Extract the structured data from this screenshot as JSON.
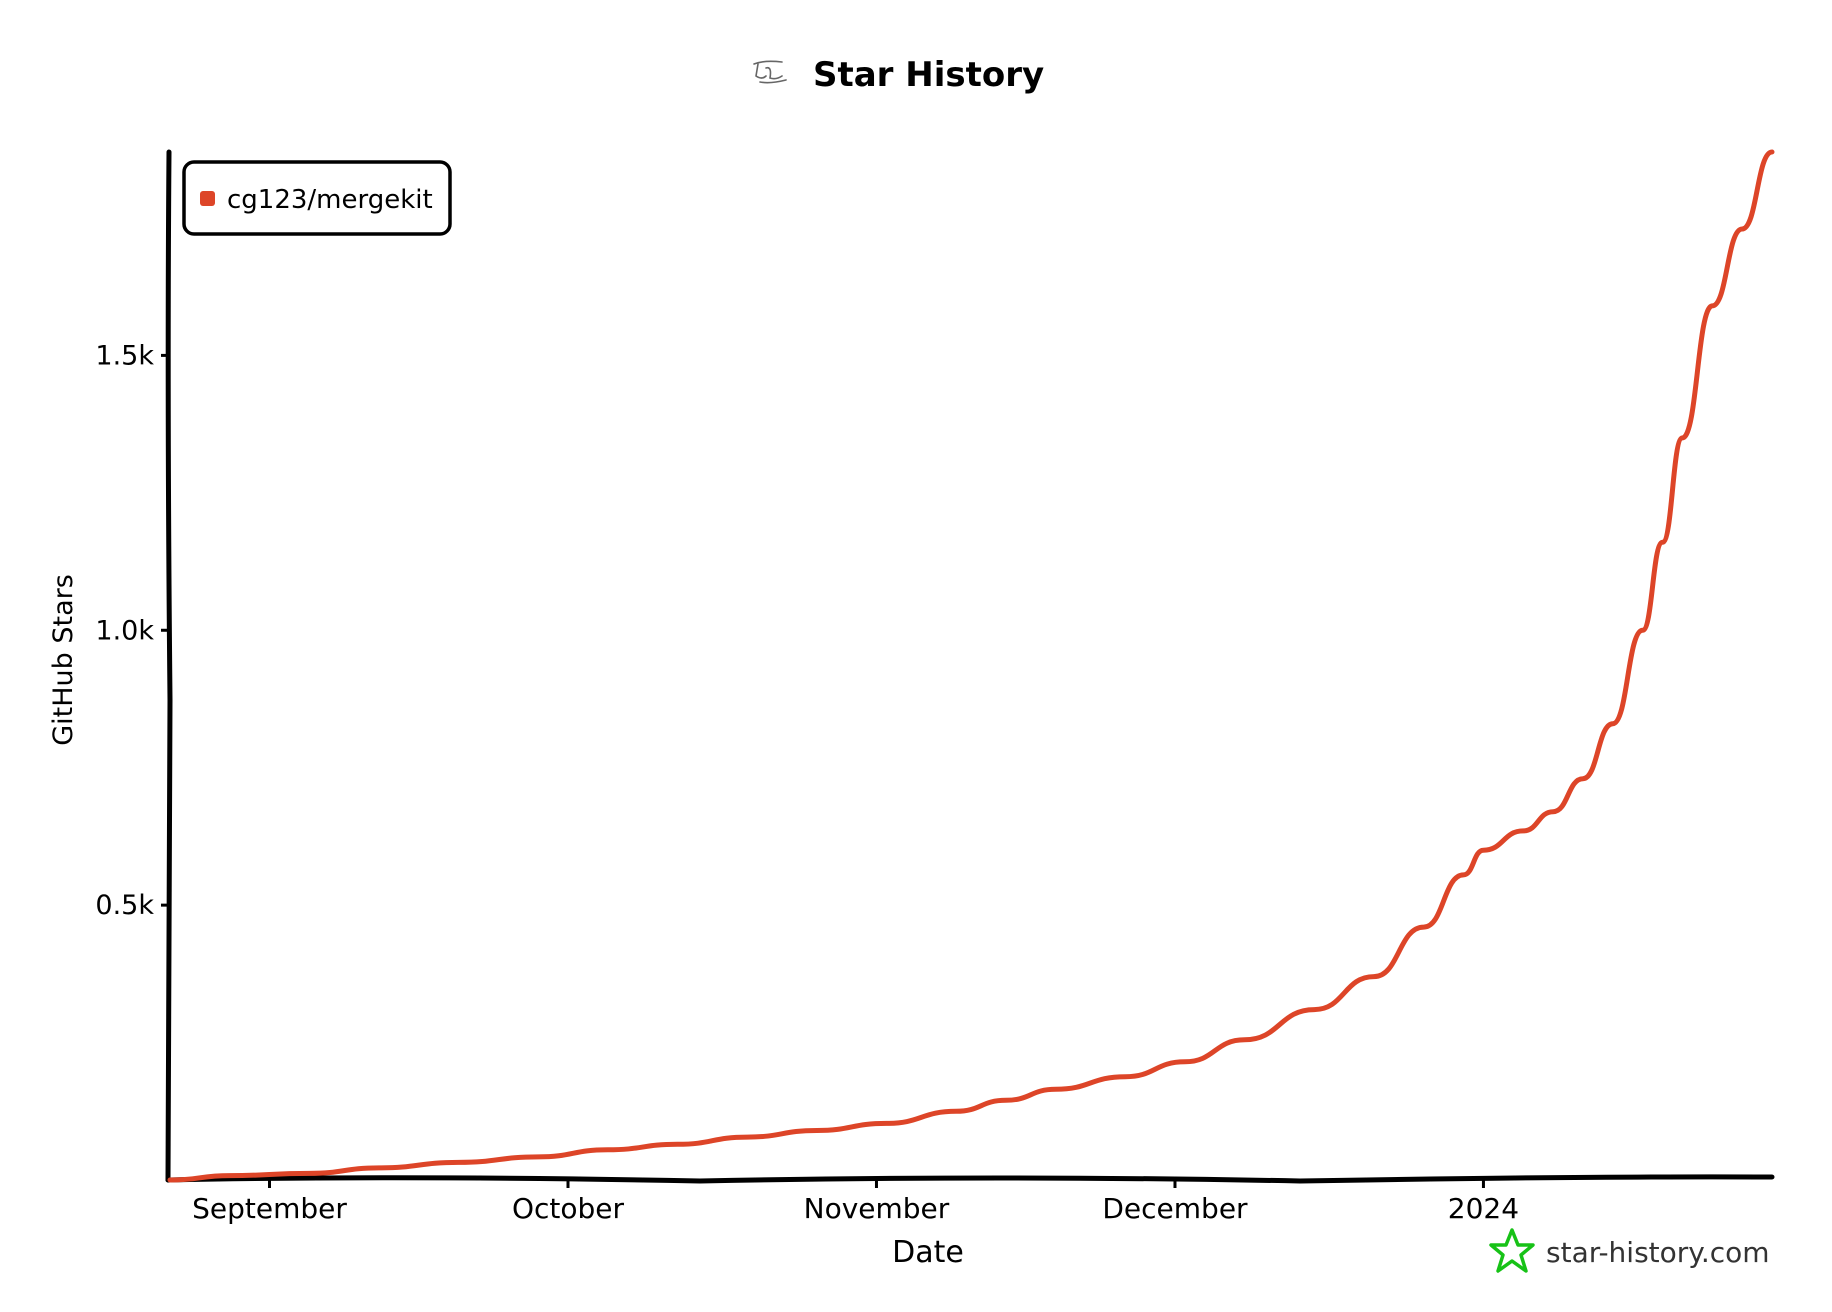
{
  "colors": {
    "series": "#dd4528",
    "axis": "#000000",
    "text": "#000000",
    "brand": "#17c217",
    "background": "#ffffff"
  },
  "icons": {
    "title": "github-icon",
    "brand": "star-icon"
  },
  "brand": {
    "text": "star-history.com"
  },
  "chart_data": {
    "type": "line",
    "title": "Star History",
    "xlabel": "Date",
    "ylabel": "GitHub Stars",
    "x_tick_labels": [
      "September",
      "October",
      "November",
      "December",
      "2024"
    ],
    "x_tick_dates": [
      "2023-09-01",
      "2023-10-01",
      "2023-11-01",
      "2023-12-01",
      "2024-01-01"
    ],
    "y_tick_labels": [
      "0.5k",
      "1.0k",
      "1.5k"
    ],
    "y_tick_values": [
      500,
      1000,
      1500
    ],
    "xlim": [
      "2023-08-22",
      "2024-01-30"
    ],
    "ylim": [
      0,
      1870
    ],
    "grid": false,
    "legend_position": "top-left",
    "series": [
      {
        "name": "cg123/mergekit",
        "color": "#dd4528",
        "points": [
          {
            "x": "2023-08-22",
            "y": 0
          },
          {
            "x": "2023-08-28",
            "y": 8
          },
          {
            "x": "2023-09-05",
            "y": 12
          },
          {
            "x": "2023-09-12",
            "y": 22
          },
          {
            "x": "2023-09-20",
            "y": 32
          },
          {
            "x": "2023-09-28",
            "y": 42
          },
          {
            "x": "2023-10-05",
            "y": 55
          },
          {
            "x": "2023-10-12",
            "y": 65
          },
          {
            "x": "2023-10-19",
            "y": 78
          },
          {
            "x": "2023-10-26",
            "y": 90
          },
          {
            "x": "2023-11-02",
            "y": 103
          },
          {
            "x": "2023-11-09",
            "y": 125
          },
          {
            "x": "2023-11-14",
            "y": 145
          },
          {
            "x": "2023-11-19",
            "y": 165
          },
          {
            "x": "2023-11-26",
            "y": 188
          },
          {
            "x": "2023-12-02",
            "y": 215
          },
          {
            "x": "2023-12-08",
            "y": 255
          },
          {
            "x": "2023-12-15",
            "y": 310
          },
          {
            "x": "2023-12-21",
            "y": 370
          },
          {
            "x": "2023-12-26",
            "y": 460
          },
          {
            "x": "2023-12-30",
            "y": 555
          },
          {
            "x": "2024-01-01",
            "y": 600
          },
          {
            "x": "2024-01-05",
            "y": 635
          },
          {
            "x": "2024-01-08",
            "y": 670
          },
          {
            "x": "2024-01-11",
            "y": 730
          },
          {
            "x": "2024-01-14",
            "y": 830
          },
          {
            "x": "2024-01-17",
            "y": 1000
          },
          {
            "x": "2024-01-19",
            "y": 1160
          },
          {
            "x": "2024-01-21",
            "y": 1350
          },
          {
            "x": "2024-01-24",
            "y": 1590
          },
          {
            "x": "2024-01-27",
            "y": 1730
          },
          {
            "x": "2024-01-30",
            "y": 1870
          }
        ]
      }
    ]
  }
}
